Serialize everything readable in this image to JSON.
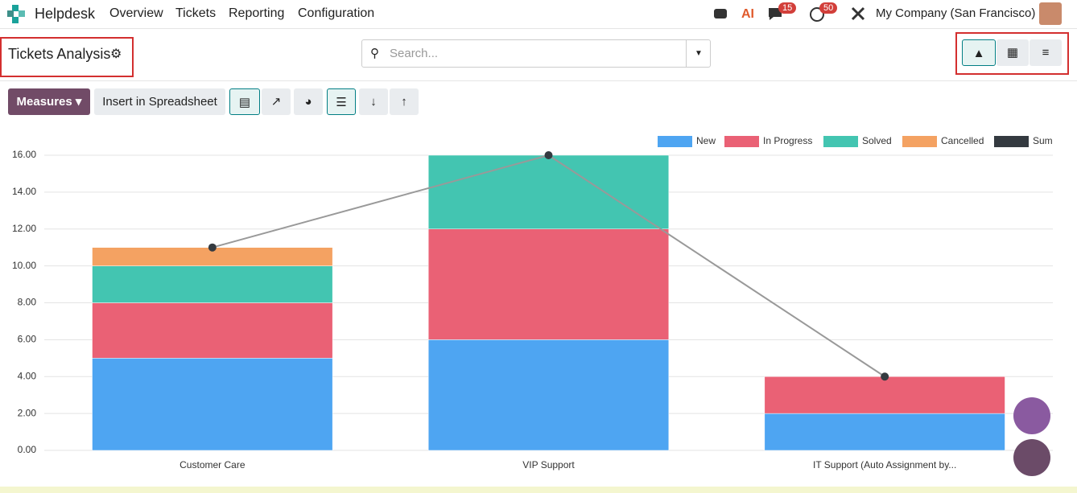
{
  "app": {
    "name": "Helpdesk",
    "menu": [
      "Overview",
      "Tickets",
      "Reporting",
      "Configuration"
    ],
    "badges": [
      15,
      50
    ],
    "company": "My Company (San Francisco)"
  },
  "page": {
    "title": "Tickets Analysis",
    "search_placeholder": "Search...",
    "measures": "Measures",
    "insert": "Insert in Spreadsheet"
  },
  "chart_data": {
    "type": "bar",
    "stacked": true,
    "categories": [
      "Customer Care",
      "VIP Support",
      "IT Support (Auto Assignment by..."
    ],
    "series": [
      {
        "name": "New",
        "color": "#4ea5f2",
        "values": [
          5,
          6,
          2
        ]
      },
      {
        "name": "In Progress",
        "color": "#ea6175",
        "values": [
          3,
          6,
          2
        ]
      },
      {
        "name": "Solved",
        "color": "#43c5b1",
        "values": [
          2,
          4,
          0
        ]
      },
      {
        "name": "Cancelled",
        "color": "#f4a262",
        "values": [
          1,
          0,
          0
        ]
      },
      {
        "name": "Sum",
        "color": "#343a40",
        "values": [
          11,
          16,
          4
        ],
        "type": "line"
      }
    ],
    "ylim": [
      0,
      16
    ],
    "yticks": [
      {
        "value": 0,
        "label": "0.00"
      },
      {
        "value": 2,
        "label": "2.00"
      },
      {
        "value": 4,
        "label": "4.00"
      },
      {
        "value": 6,
        "label": "6.00"
      },
      {
        "value": 8,
        "label": "8.00"
      },
      {
        "value": 10,
        "label": "10.00"
      },
      {
        "value": 12,
        "label": "12.00"
      },
      {
        "value": 14,
        "label": "14.00"
      },
      {
        "value": 16,
        "label": "16.00"
      }
    ],
    "grid": true
  }
}
